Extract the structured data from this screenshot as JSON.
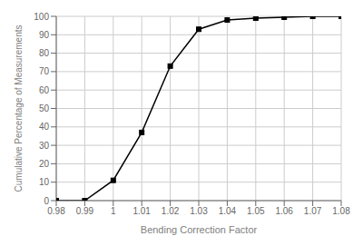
{
  "chart_data": {
    "type": "line",
    "x": [
      0.98,
      0.99,
      1.0,
      1.01,
      1.02,
      1.03,
      1.04,
      1.05,
      1.06,
      1.07,
      1.08
    ],
    "values": [
      0,
      0,
      11,
      37,
      73,
      93,
      98,
      99,
      99.5,
      100,
      100
    ],
    "xlabel": "Bending Correction Factor",
    "ylabel": "Cumulative Percentage of Measurements",
    "xlim": [
      0.98,
      1.08
    ],
    "ylim": [
      0,
      100
    ],
    "xticks": [
      0.98,
      0.99,
      1,
      1.01,
      1.02,
      1.03,
      1.04,
      1.05,
      1.06,
      1.07,
      1.08
    ],
    "yticks": [
      0,
      10,
      20,
      30,
      40,
      50,
      60,
      70,
      80,
      90,
      100
    ],
    "color": "#000000",
    "marker": "square",
    "grid": true
  }
}
